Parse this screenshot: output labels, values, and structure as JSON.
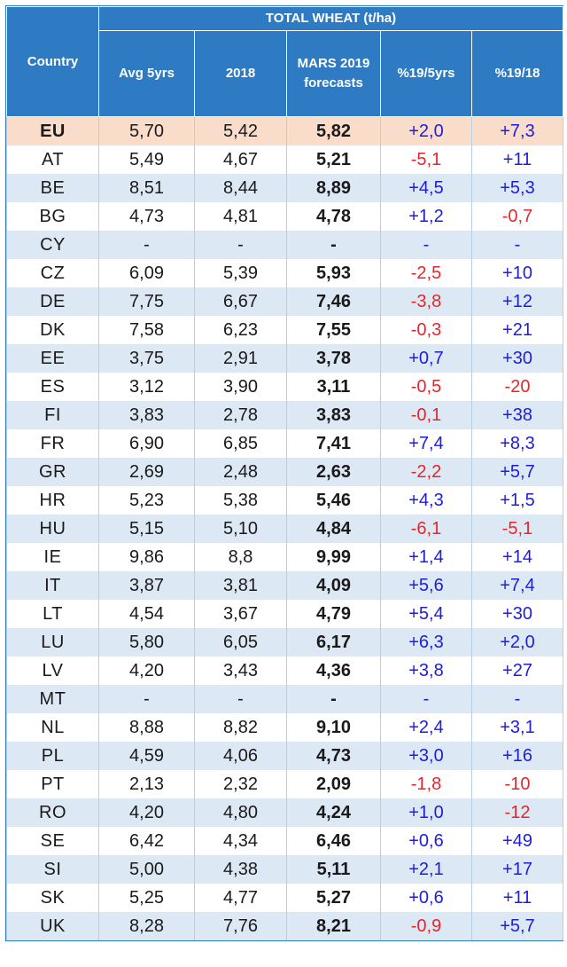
{
  "table": {
    "title": "TOTAL WHEAT (t/ha)",
    "headers": {
      "country": "Country",
      "avg5": "Avg 5yrs",
      "y2018": "2018",
      "mars_line1": "MARS 2019",
      "mars_line2": "forecasts",
      "pct5": "%19/5yrs",
      "pct18": "%19/18"
    },
    "rows": [
      {
        "country": "EU",
        "avg": "5,70",
        "y2018": "5,42",
        "fc": "5,82",
        "p5": "+2,0",
        "p18": "+7,3"
      },
      {
        "country": "AT",
        "avg": "5,49",
        "y2018": "4,67",
        "fc": "5,21",
        "p5": "-5,1",
        "p18": "+11"
      },
      {
        "country": "BE",
        "avg": "8,51",
        "y2018": "8,44",
        "fc": "8,89",
        "p5": "+4,5",
        "p18": "+5,3"
      },
      {
        "country": "BG",
        "avg": "4,73",
        "y2018": "4,81",
        "fc": "4,78",
        "p5": "+1,2",
        "p18": "-0,7"
      },
      {
        "country": "CY",
        "avg": "-",
        "y2018": "-",
        "fc": "-",
        "p5": "-",
        "p18": "-"
      },
      {
        "country": "CZ",
        "avg": "6,09",
        "y2018": "5,39",
        "fc": "5,93",
        "p5": "-2,5",
        "p18": "+10"
      },
      {
        "country": "DE",
        "avg": "7,75",
        "y2018": "6,67",
        "fc": "7,46",
        "p5": "-3,8",
        "p18": "+12"
      },
      {
        "country": "DK",
        "avg": "7,58",
        "y2018": "6,23",
        "fc": "7,55",
        "p5": "-0,3",
        "p18": "+21"
      },
      {
        "country": "EE",
        "avg": "3,75",
        "y2018": "2,91",
        "fc": "3,78",
        "p5": "+0,7",
        "p18": "+30"
      },
      {
        "country": "ES",
        "avg": "3,12",
        "y2018": "3,90",
        "fc": "3,11",
        "p5": "-0,5",
        "p18": "-20"
      },
      {
        "country": "FI",
        "avg": "3,83",
        "y2018": "2,78",
        "fc": "3,83",
        "p5": "-0,1",
        "p18": "+38"
      },
      {
        "country": "FR",
        "avg": "6,90",
        "y2018": "6,85",
        "fc": "7,41",
        "p5": "+7,4",
        "p18": "+8,3"
      },
      {
        "country": "GR",
        "avg": "2,69",
        "y2018": "2,48",
        "fc": "2,63",
        "p5": "-2,2",
        "p18": "+5,7"
      },
      {
        "country": "HR",
        "avg": "5,23",
        "y2018": "5,38",
        "fc": "5,46",
        "p5": "+4,3",
        "p18": "+1,5"
      },
      {
        "country": "HU",
        "avg": "5,15",
        "y2018": "5,10",
        "fc": "4,84",
        "p5": "-6,1",
        "p18": "-5,1"
      },
      {
        "country": "IE",
        "avg": "9,86",
        "y2018": "8,8",
        "fc": "9,99",
        "p5": "+1,4",
        "p18": "+14"
      },
      {
        "country": "IT",
        "avg": "3,87",
        "y2018": "3,81",
        "fc": "4,09",
        "p5": "+5,6",
        "p18": "+7,4"
      },
      {
        "country": "LT",
        "avg": "4,54",
        "y2018": "3,67",
        "fc": "4,79",
        "p5": "+5,4",
        "p18": "+30"
      },
      {
        "country": "LU",
        "avg": "5,80",
        "y2018": "6,05",
        "fc": "6,17",
        "p5": "+6,3",
        "p18": "+2,0"
      },
      {
        "country": "LV",
        "avg": "4,20",
        "y2018": "3,43",
        "fc": "4,36",
        "p5": "+3,8",
        "p18": "+27"
      },
      {
        "country": "MT",
        "avg": "-",
        "y2018": "-",
        "fc": "-",
        "p5": "-",
        "p18": "-"
      },
      {
        "country": "NL",
        "avg": "8,88",
        "y2018": "8,82",
        "fc": "9,10",
        "p5": "+2,4",
        "p18": "+3,1"
      },
      {
        "country": "PL",
        "avg": "4,59",
        "y2018": "4,06",
        "fc": "4,73",
        "p5": "+3,0",
        "p18": "+16"
      },
      {
        "country": "PT",
        "avg": "2,13",
        "y2018": "2,32",
        "fc": "2,09",
        "p5": "-1,8",
        "p18": "-10"
      },
      {
        "country": "RO",
        "avg": "4,20",
        "y2018": "4,80",
        "fc": "4,24",
        "p5": "+1,0",
        "p18": "-12"
      },
      {
        "country": "SE",
        "avg": "6,42",
        "y2018": "4,34",
        "fc": "6,46",
        "p5": "+0,6",
        "p18": "+49"
      },
      {
        "country": "SI",
        "avg": "5,00",
        "y2018": "4,38",
        "fc": "5,11",
        "p5": "+2,1",
        "p18": "+17"
      },
      {
        "country": "SK",
        "avg": "5,25",
        "y2018": "4,77",
        "fc": "5,27",
        "p5": "+0,6",
        "p18": "+11"
      },
      {
        "country": "UK",
        "avg": "8,28",
        "y2018": "7,76",
        "fc": "8,21",
        "p5": "-0,9",
        "p18": "+5,7"
      }
    ]
  },
  "colors": {
    "header_bg": "#2e7bc4",
    "highlight_row": "#fadccb",
    "band_row": "#dde8f5",
    "positive": "#1d1ddb",
    "negative": "#e3262b"
  }
}
